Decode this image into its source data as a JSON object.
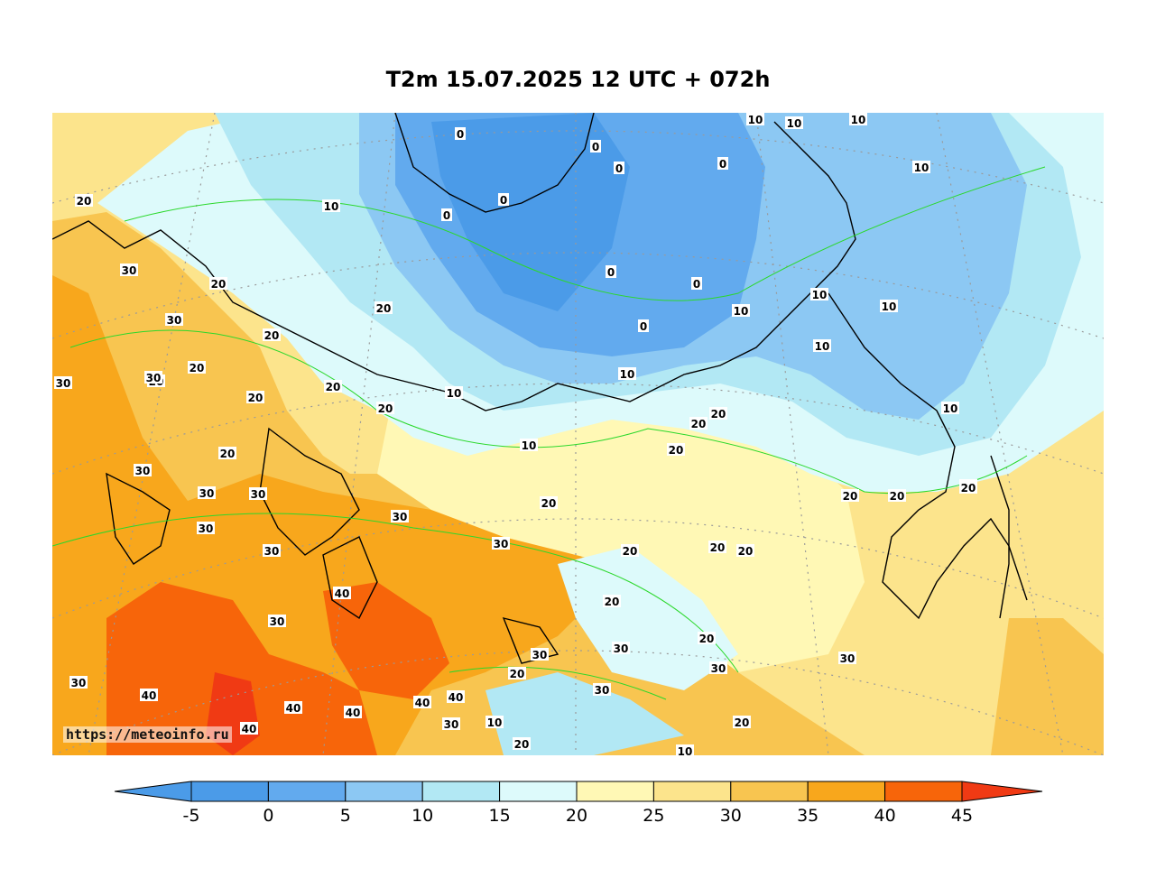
{
  "title": "T2m 15.07.2025 12 UTC + 072h",
  "watermark": "https://meteoinfo.ru",
  "colorbar": {
    "ticks": [
      "-5",
      "0",
      "5",
      "10",
      "15",
      "20",
      "25",
      "30",
      "35",
      "40",
      "45"
    ],
    "colors": [
      "#4b9be8",
      "#62aaee",
      "#8cc8f3",
      "#b2e8f4",
      "#ddfafb",
      "#fff8b5",
      "#fce48c",
      "#f8c550",
      "#f8a71c",
      "#f7650a",
      "#f03a14"
    ],
    "under_color": "#4b9be8",
    "over_color": "#f03a14"
  },
  "contour_labels": [
    "0",
    "0",
    "0",
    "0",
    "0",
    "0",
    "0",
    "0",
    "0",
    "10",
    "10",
    "10",
    "10",
    "10",
    "10",
    "10",
    "10",
    "10",
    "10",
    "10",
    "10",
    "10",
    "10",
    "10",
    "10",
    "20",
    "20",
    "20",
    "20",
    "20",
    "20",
    "20",
    "20",
    "20",
    "20",
    "20",
    "20",
    "20",
    "20",
    "20",
    "20",
    "20",
    "20",
    "20",
    "20",
    "20",
    "20",
    "20",
    "20",
    "20",
    "30",
    "30",
    "30",
    "30",
    "30",
    "30",
    "30",
    "30",
    "30",
    "30",
    "30",
    "30",
    "30",
    "30",
    "30",
    "30",
    "30",
    "30",
    "30",
    "30",
    "40",
    "40",
    "40",
    "40",
    "40",
    "40",
    "40"
  ]
}
